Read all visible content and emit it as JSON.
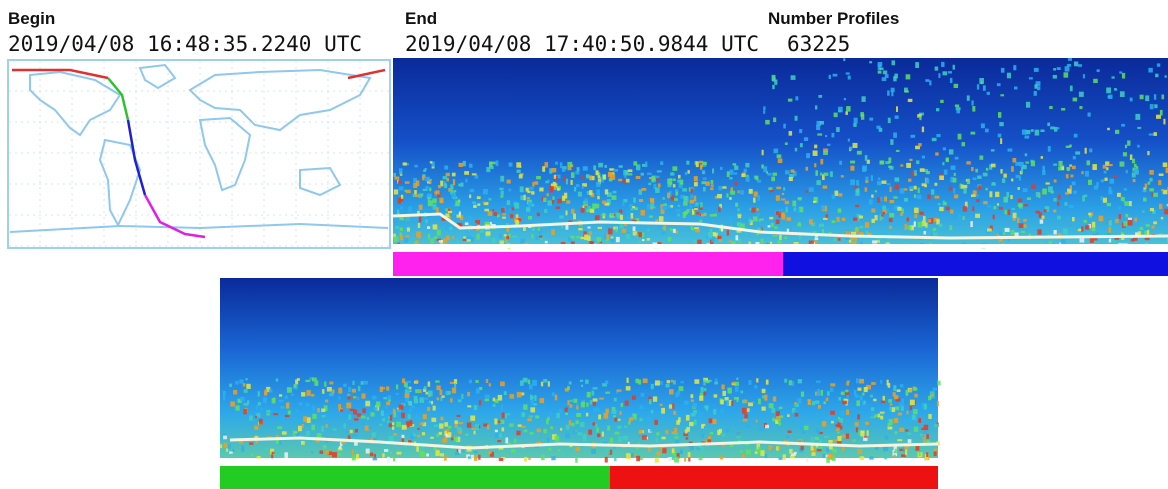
{
  "begin": {
    "label": "Begin",
    "time": "2019/04/08 16:48:35.2240 UTC"
  },
  "end": {
    "label": "End",
    "time": "2019/04/08 17:40:50.9844 UTC"
  },
  "profiles": {
    "label": "Number Profiles",
    "count": 63225
  }
}
